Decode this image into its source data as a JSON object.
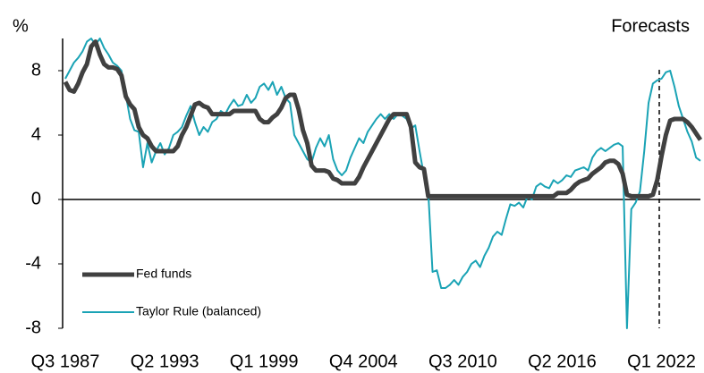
{
  "chart_data": {
    "type": "line",
    "y_label": "%",
    "annotation": "Forecasts",
    "categories": [
      "Q3 1987",
      null,
      null,
      null,
      null,
      null,
      null,
      null,
      null,
      null,
      null,
      null,
      null,
      null,
      null,
      null,
      null,
      null,
      null,
      null,
      null,
      null,
      null,
      "Q2 1993",
      null,
      null,
      null,
      null,
      null,
      null,
      null,
      null,
      null,
      null,
      null,
      null,
      null,
      null,
      null,
      null,
      null,
      null,
      null,
      null,
      null,
      null,
      "Q1 1999",
      null,
      null,
      null,
      null,
      null,
      null,
      null,
      null,
      null,
      null,
      null,
      null,
      null,
      null,
      null,
      null,
      null,
      null,
      null,
      null,
      null,
      null,
      "Q4 2004",
      null,
      null,
      null,
      null,
      null,
      null,
      null,
      null,
      null,
      null,
      null,
      null,
      null,
      null,
      null,
      null,
      null,
      null,
      null,
      null,
      null,
      null,
      "Q3 2010",
      null,
      null,
      null,
      null,
      null,
      null,
      null,
      null,
      null,
      null,
      null,
      null,
      null,
      null,
      null,
      null,
      null,
      null,
      null,
      null,
      null,
      null,
      "Q2 2016",
      null,
      null,
      null,
      null,
      null,
      null,
      null,
      null,
      null,
      null,
      null,
      null,
      null,
      null,
      null,
      null,
      null,
      null,
      null,
      null,
      null,
      null,
      "Q1 2022",
      null,
      null,
      null,
      null,
      null,
      null,
      null,
      null,
      null
    ],
    "series": [
      {
        "name": "Fed funds",
        "color": "#404040",
        "width": 5,
        "values": [
          7.3,
          6.8,
          6.7,
          7.2,
          7.9,
          8.4,
          9.5,
          9.8,
          9.0,
          8.4,
          8.2,
          8.2,
          8.1,
          7.7,
          6.4,
          5.9,
          5.6,
          4.5,
          4.0,
          3.8,
          3.3,
          3.0,
          3.0,
          3.0,
          3.0,
          3.0,
          3.3,
          4.0,
          4.5,
          5.2,
          5.9,
          6.0,
          5.8,
          5.7,
          5.3,
          5.3,
          5.3,
          5.3,
          5.3,
          5.5,
          5.5,
          5.5,
          5.5,
          5.5,
          5.5,
          5.0,
          4.8,
          4.8,
          5.1,
          5.3,
          5.7,
          6.3,
          6.5,
          6.5,
          5.6,
          4.3,
          3.5,
          2.1,
          1.8,
          1.8,
          1.8,
          1.7,
          1.3,
          1.2,
          1.0,
          1.0,
          1.0,
          1.0,
          1.4,
          2.0,
          2.5,
          3.0,
          3.5,
          4.0,
          4.5,
          5.0,
          5.3,
          5.3,
          5.3,
          5.3,
          4.5,
          2.3,
          2.0,
          1.9,
          0.2,
          0.2,
          0.2,
          0.2,
          0.2,
          0.2,
          0.2,
          0.2,
          0.2,
          0.2,
          0.2,
          0.2,
          0.2,
          0.2,
          0.2,
          0.2,
          0.2,
          0.2,
          0.2,
          0.2,
          0.2,
          0.2,
          0.2,
          0.2,
          0.2,
          0.2,
          0.2,
          0.2,
          0.2,
          0.2,
          0.4,
          0.4,
          0.4,
          0.6,
          0.9,
          1.1,
          1.2,
          1.3,
          1.6,
          1.8,
          2.0,
          2.3,
          2.4,
          2.4,
          2.2,
          1.6,
          0.3,
          0.2,
          0.2,
          0.2,
          0.2,
          0.2,
          0.3,
          1.2,
          2.7,
          4.0,
          4.9,
          5.0,
          5.0,
          5.0,
          4.8,
          4.5,
          4.1,
          3.7
        ]
      },
      {
        "name": "Taylor Rule (balanced)",
        "color": "#1aa3b5",
        "width": 2,
        "values": [
          7.5,
          8.0,
          8.5,
          8.8,
          9.2,
          9.8,
          10.0,
          9.6,
          10.0,
          9.4,
          9.0,
          8.5,
          8.3,
          8.0,
          6.5,
          5.0,
          4.3,
          4.2,
          2.0,
          3.5,
          2.3,
          3.0,
          3.5,
          2.8,
          3.2,
          4.0,
          4.2,
          4.5,
          5.2,
          5.8,
          4.8,
          4.0,
          4.5,
          4.2,
          4.8,
          5.0,
          5.5,
          5.3,
          5.8,
          6.2,
          5.8,
          5.9,
          6.5,
          6.0,
          6.3,
          7.0,
          7.2,
          6.8,
          7.3,
          6.5,
          7.0,
          6.3,
          6.0,
          4.0,
          3.5,
          3.0,
          2.5,
          2.3,
          3.2,
          3.8,
          3.3,
          4.0,
          2.5,
          1.8,
          1.5,
          1.8,
          2.6,
          3.2,
          3.8,
          3.5,
          4.2,
          4.6,
          5.0,
          5.3,
          5.0,
          5.3,
          5.0,
          5.3,
          5.2,
          5.0,
          4.4,
          4.6,
          3.0,
          1.5,
          0.5,
          -4.5,
          -4.4,
          -5.5,
          -5.5,
          -5.3,
          -5.0,
          -5.3,
          -4.8,
          -4.5,
          -4.0,
          -3.8,
          -4.2,
          -3.5,
          -3.0,
          -2.3,
          -2.0,
          -2.2,
          -1.2,
          -0.3,
          -0.4,
          -0.2,
          -0.5,
          0.2,
          0.0,
          0.8,
          1.0,
          0.8,
          0.7,
          1.2,
          1.0,
          1.2,
          1.5,
          1.4,
          1.8,
          1.9,
          2.0,
          1.8,
          2.6,
          3.0,
          3.2,
          3.0,
          3.2,
          3.4,
          3.5,
          3.3,
          -8.0,
          -0.6,
          -0.2,
          0.5,
          3.0,
          6.0,
          7.2,
          7.4,
          7.5,
          7.9,
          8.0,
          7.0,
          5.8,
          5.0,
          4.2,
          3.6,
          2.6,
          2.4
        ]
      }
    ],
    "ylim": [
      -8,
      10
    ],
    "yticks": [
      -8,
      -4,
      0,
      4,
      8
    ],
    "grid": false,
    "legend": "lower left"
  }
}
